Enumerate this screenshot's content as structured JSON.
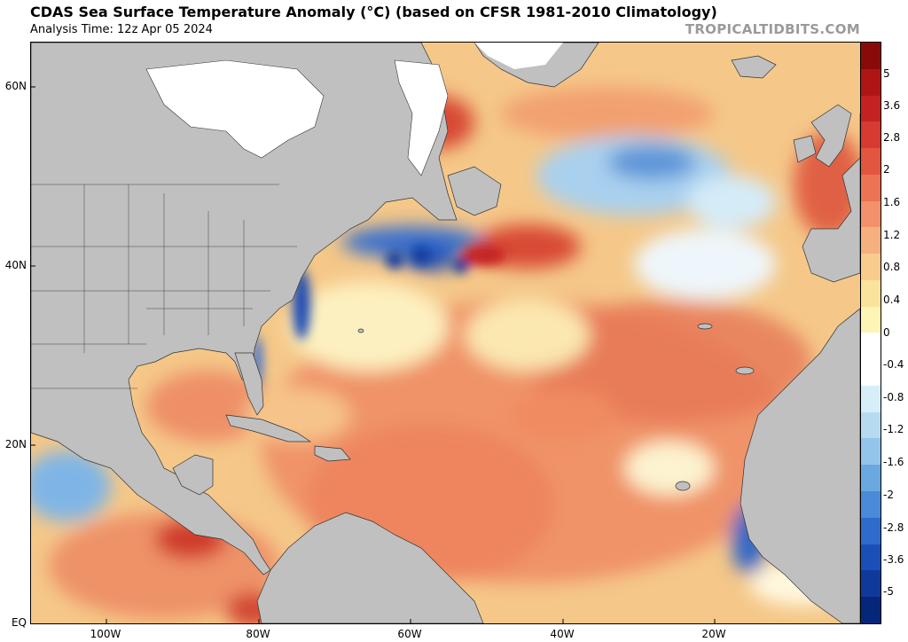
{
  "header": {
    "title": "CDAS Sea Surface Temperature Anomaly (°C) (based on CFSR 1981-2010 Climatology)",
    "analysis_time": "Analysis Time: 12z Apr 05 2024",
    "watermark": "TROPICALTIDBITS.COM"
  },
  "axes": {
    "lat_labels": [
      "60N",
      "40N",
      "20N",
      "EQ"
    ],
    "lon_labels": [
      "100W",
      "80W",
      "60W",
      "40W",
      "20W"
    ]
  },
  "colorbar": {
    "labels": [
      "5",
      "3.6",
      "2.8",
      "2",
      "1.6",
      "1.2",
      "0.8",
      "0.4",
      "0",
      "-0.4",
      "-0.8",
      "-1.2",
      "-1.6",
      "-2",
      "-2.8",
      "-3.6",
      "-5"
    ],
    "colors": [
      "#8a0a0a",
      "#b01515",
      "#c42222",
      "#d63a30",
      "#e2553f",
      "#ec7354",
      "#f2916b",
      "#f6b07f",
      "#f8cc8d",
      "#fae39c",
      "#fdf4b6",
      "#ffffff",
      "#ffffff",
      "#d6eef8",
      "#b6dbf1",
      "#93c5ea",
      "#6aa8df",
      "#4a8ad6",
      "#2f6bcb",
      "#1b4fb8",
      "#0f3a9c",
      "#06267a"
    ]
  },
  "colors": {
    "land": "#c0c0c0",
    "ice": "#ffffff",
    "warm_strong": "#e06045",
    "warm": "#f0956a",
    "neutral": "#fae39c",
    "cool": "#93c5ea",
    "cool_strong": "#1f55c0"
  }
}
